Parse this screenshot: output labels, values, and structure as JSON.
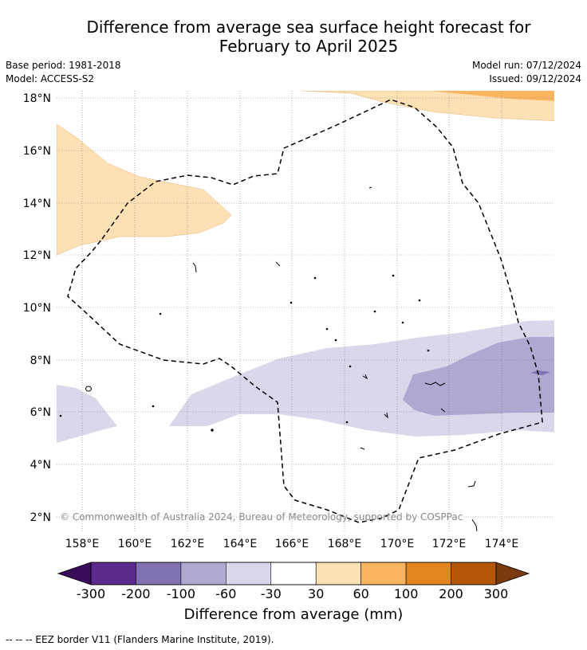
{
  "title_line1": "Difference from average sea surface height forecast for",
  "title_line2": "February to April 2025",
  "base_period": "Base period: 1981-2018",
  "model": "Model: ACCESS-S2",
  "model_run": "Model run: 07/12/2024",
  "issued": "Issued: 09/12/2024",
  "copyright": "© Commonwealth of Australia 2024, Bureau of Meteorology, supported by COSPPac",
  "lat_labels": [
    "18°N",
    "16°N",
    "14°N",
    "12°N",
    "10°N",
    "8°N",
    "6°N",
    "4°N",
    "2°N"
  ],
  "lon_labels": [
    "158°E",
    "160°E",
    "162°E",
    "164°E",
    "166°E",
    "168°E",
    "170°E",
    "172°E",
    "174°E"
  ],
  "colorbar": {
    "title": "Difference from average (mm)",
    "ticks": [
      "-300",
      "-200",
      "-100",
      "-60",
      "-30",
      "30",
      "60",
      "100",
      "200",
      "300"
    ],
    "colors": [
      "#3a0b5a",
      "#5a2a8c",
      "#8272b2",
      "#b1a8d2",
      "#d8d8ea",
      "#ffffff",
      "#fde0b4",
      "#fbb560",
      "#e3841c",
      "#b45708",
      "#7b3a0d"
    ]
  },
  "legend_text": "--  --  -- EEZ border V11 (Flanders Marine Institute, 2019)."
}
